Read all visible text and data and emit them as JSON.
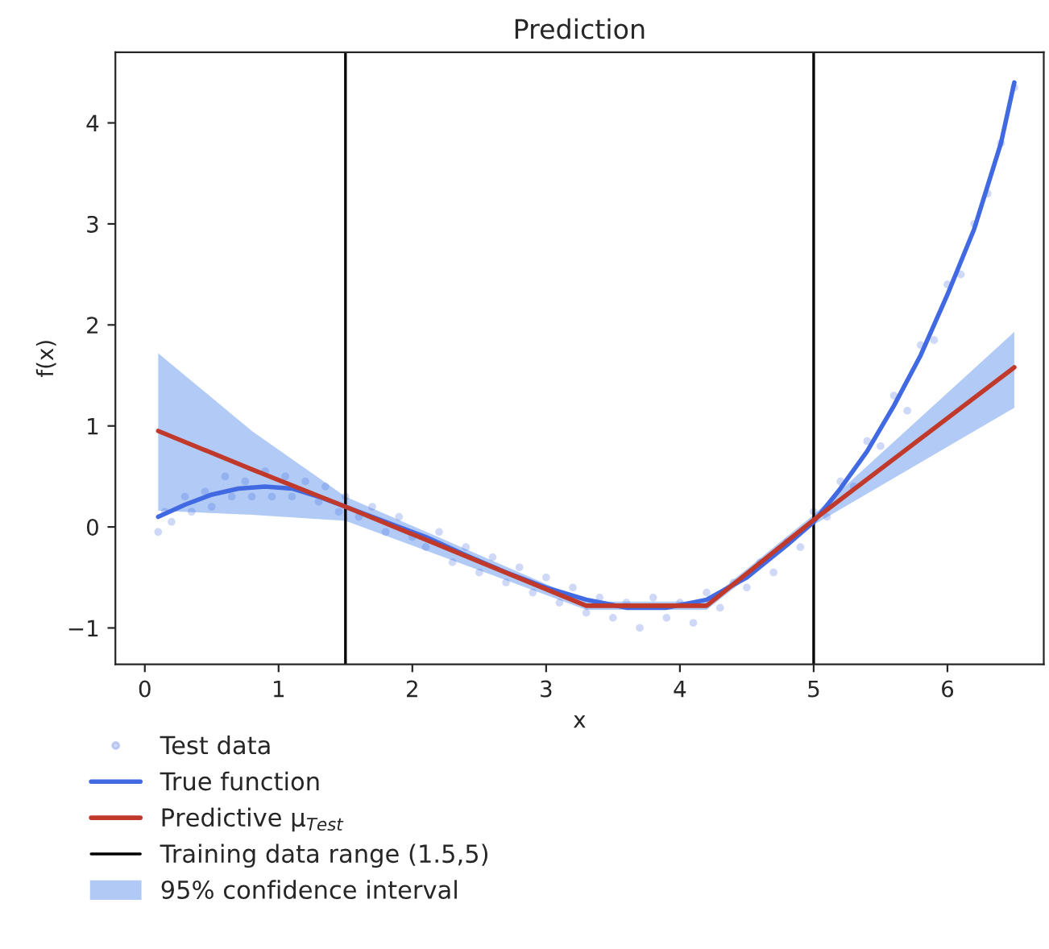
{
  "chart_data": {
    "type": "line",
    "title": "Prediction",
    "xlabel": "x",
    "ylabel": "f(x)",
    "xlim": [
      -0.22,
      6.72
    ],
    "ylim": [
      -1.36,
      4.7
    ],
    "xticks": [
      0,
      1,
      2,
      3,
      4,
      5,
      6
    ],
    "yticks": [
      {
        "value": -1,
        "label": "−1"
      },
      0,
      1,
      2,
      3,
      4
    ],
    "grid": false,
    "annotations": [
      "95% confidence interval"
    ],
    "legend": "bottom left",
    "series": [
      {
        "type": "scatter",
        "name": "Test data",
        "color": "#4169e1",
        "marker": "circle",
        "x": [
          0.1,
          0.15,
          0.2,
          0.3,
          0.35,
          0.45,
          0.5,
          0.6,
          0.65,
          0.75,
          0.8,
          0.9,
          0.95,
          1.05,
          1.1,
          1.2,
          1.3,
          1.35,
          1.45,
          1.5,
          1.6,
          1.7,
          1.8,
          1.9,
          2.0,
          2.1,
          2.2,
          2.3,
          2.4,
          2.5,
          2.6,
          2.7,
          2.8,
          2.9,
          3.0,
          3.1,
          3.2,
          3.3,
          3.4,
          3.5,
          3.6,
          3.7,
          3.8,
          3.9,
          4.0,
          4.1,
          4.2,
          4.3,
          4.4,
          4.5,
          4.6,
          4.7,
          4.8,
          4.9,
          5.0,
          5.1,
          5.2,
          5.3,
          5.4,
          5.5,
          5.6,
          5.7,
          5.8,
          5.9,
          6.0,
          6.1,
          6.2,
          6.3,
          6.4,
          6.5
        ],
        "values": [
          -0.05,
          0.15,
          0.05,
          0.3,
          0.15,
          0.35,
          0.2,
          0.5,
          0.3,
          0.45,
          0.3,
          0.55,
          0.3,
          0.5,
          0.3,
          0.45,
          0.25,
          0.4,
          0.15,
          0.3,
          0.1,
          0.2,
          -0.05,
          0.1,
          -0.1,
          -0.2,
          -0.05,
          -0.35,
          -0.2,
          -0.45,
          -0.3,
          -0.55,
          -0.4,
          -0.65,
          -0.5,
          -0.75,
          -0.6,
          -0.85,
          -0.7,
          -0.9,
          -0.75,
          -1.0,
          -0.7,
          -0.9,
          -0.75,
          -0.95,
          -0.65,
          -0.8,
          -0.55,
          -0.6,
          -0.35,
          -0.45,
          -0.15,
          -0.2,
          0.15,
          0.1,
          0.45,
          0.4,
          0.85,
          0.8,
          1.3,
          1.15,
          1.8,
          1.85,
          2.4,
          2.5,
          3.0,
          3.3,
          3.8,
          4.35
        ]
      },
      {
        "name": "True function",
        "color": "#4169e1",
        "x": [
          0.1,
          0.3,
          0.5,
          0.7,
          0.9,
          1.1,
          1.3,
          1.5,
          1.8,
          2.1,
          2.4,
          2.7,
          3.0,
          3.3,
          3.6,
          3.9,
          4.2,
          4.5,
          4.8,
          5.0,
          5.2,
          5.4,
          5.6,
          5.8,
          6.0,
          6.2,
          6.4,
          6.5
        ],
        "values": [
          0.1,
          0.22,
          0.32,
          0.38,
          0.4,
          0.38,
          0.3,
          0.2,
          0.05,
          -0.1,
          -0.28,
          -0.45,
          -0.6,
          -0.72,
          -0.8,
          -0.8,
          -0.72,
          -0.5,
          -0.18,
          0.05,
          0.38,
          0.75,
          1.2,
          1.7,
          2.3,
          2.95,
          3.8,
          4.4
        ]
      },
      {
        "name": "Predictive μ$_{Test}$",
        "color": "#c0392b",
        "x": [
          0.1,
          0.8,
          1.5,
          3.3,
          4.2,
          5.0,
          6.5
        ],
        "values": [
          0.95,
          0.57,
          0.2,
          -0.78,
          -0.78,
          0.07,
          1.58
        ],
        "lower": [
          0.16,
          0.12,
          0.06,
          -0.82,
          -0.82,
          0.02,
          1.18
        ],
        "upper": [
          1.72,
          0.95,
          0.3,
          -0.74,
          -0.74,
          0.12,
          1.93
        ]
      }
    ],
    "ref_lines": [
      {
        "axis": "x",
        "value": 1.5,
        "label": "Training data range (1.5,5)",
        "color": "#000000"
      },
      {
        "axis": "x",
        "value": 5,
        "color": "#000000"
      }
    ]
  }
}
